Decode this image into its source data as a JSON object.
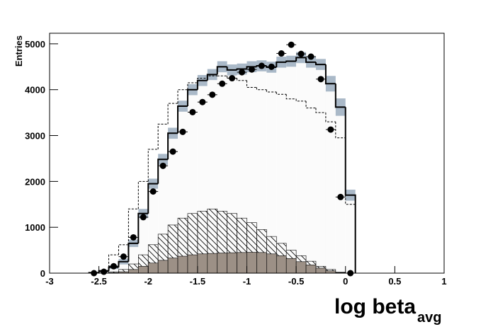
{
  "chart_data": {
    "type": "histogram",
    "xlabel": "log beta",
    "xlabel_sub": "avg",
    "ylabel": "Entries",
    "xlim": [
      -3,
      1
    ],
    "ylim": [
      0,
      5230
    ],
    "xticks": [
      -3,
      -2.5,
      -2,
      -1.5,
      -1,
      -0.5,
      0,
      0.5,
      1
    ],
    "yticks": [
      0,
      1000,
      2000,
      3000,
      4000,
      5000
    ],
    "bins": [
      -2.6,
      -2.5,
      -2.4,
      -2.3,
      -2.2,
      -2.1,
      -2.0,
      -1.9,
      -1.8,
      -1.7,
      -1.6,
      -1.5,
      -1.4,
      -1.3,
      -1.2,
      -1.1,
      -1.0,
      -0.9,
      -0.8,
      -0.7,
      -0.6,
      -0.5,
      -0.4,
      -0.3,
      -0.2,
      -0.1,
      0.0,
      0.1
    ],
    "series": [
      {
        "style": "band",
        "color": "#aab9c8",
        "values": [
          10,
          50,
          130,
          250,
          650,
          1300,
          1950,
          2480,
          3050,
          3640,
          4000,
          4200,
          4330,
          4500,
          4430,
          4450,
          4500,
          4520,
          4490,
          4600,
          4620,
          4700,
          4600,
          4550,
          4130,
          3620,
          1700
        ],
        "errors": [
          10,
          20,
          40,
          60,
          80,
          100,
          110,
          120,
          120,
          120,
          120,
          120,
          120,
          120,
          120,
          120,
          120,
          120,
          120,
          120,
          120,
          120,
          120,
          120,
          170,
          190,
          120
        ]
      },
      {
        "style": "hatch",
        "color": "#000000",
        "values": [
          0,
          0,
          30,
          80,
          200,
          400,
          620,
          850,
          1050,
          1200,
          1300,
          1350,
          1400,
          1350,
          1300,
          1200,
          1100,
          950,
          800,
          650,
          500,
          380,
          260,
          150,
          80,
          20,
          0
        ]
      },
      {
        "style": "fill",
        "color": "#9c9086",
        "values": [
          0,
          0,
          10,
          30,
          80,
          150,
          220,
          280,
          330,
          370,
          400,
          420,
          430,
          440,
          445,
          450,
          455,
          450,
          420,
          380,
          320,
          250,
          180,
          110,
          50,
          10,
          0
        ]
      },
      {
        "style": "dashed",
        "color": "#000000",
        "values": [
          10,
          50,
          400,
          620,
          1400,
          2000,
          2700,
          3250,
          3700,
          4000,
          4150,
          4250,
          4300,
          4300,
          4250,
          4200,
          4050,
          4000,
          3950,
          3900,
          3800,
          3750,
          3600,
          3500,
          3300,
          2950,
          1500
        ]
      },
      {
        "style": "step",
        "color": "#000000",
        "values": [
          10,
          50,
          130,
          250,
          650,
          1300,
          1950,
          2480,
          3050,
          3640,
          4000,
          4200,
          4330,
          4500,
          4430,
          4450,
          4500,
          4520,
          4490,
          4600,
          4620,
          4700,
          4600,
          4550,
          4130,
          3620,
          1700
        ]
      },
      {
        "style": "points",
        "color": "#000000",
        "values": [
          0,
          30,
          150,
          360,
          780,
          1220,
          1780,
          2340,
          2650,
          3080,
          3510,
          3730,
          3890,
          4130,
          4250,
          4380,
          4440,
          4520,
          4500,
          4790,
          4980,
          4780,
          4720,
          4230,
          3130,
          1660,
          0
        ]
      }
    ]
  }
}
